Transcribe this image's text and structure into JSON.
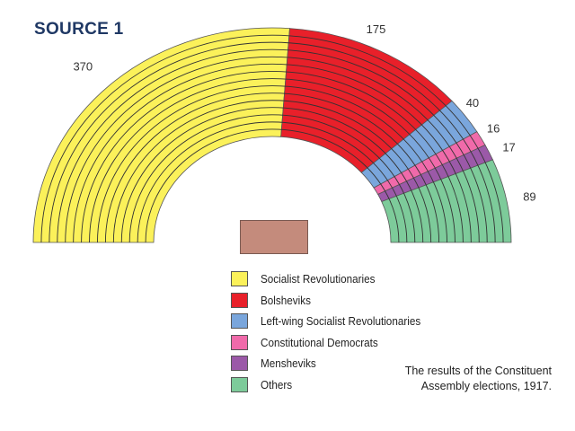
{
  "title": "SOURCE  1",
  "caption": {
    "line1": "The results of the Constituent",
    "line2": "Assembly elections, 1917."
  },
  "chart_data": {
    "type": "pie",
    "subtype": "parliament-semicircle",
    "title": "SOURCE 1",
    "caption": "The results of the Constituent Assembly elections, 1917.",
    "categories": [
      "Socialist Revolutionaries",
      "Bolsheviks",
      "Left-wing Socialist Revolutionaries",
      "Constitutional Democrats",
      "Mensheviks",
      "Others"
    ],
    "values": [
      370,
      175,
      40,
      16,
      17,
      89
    ],
    "colors": [
      "#fbf15a",
      "#e8202a",
      "#7aa6dc",
      "#f06aaa",
      "#9b59a8",
      "#7dcb9a"
    ],
    "data_labels": [
      "370",
      "175",
      "40",
      "16",
      "17",
      "89"
    ],
    "legend_position": "bottom-center",
    "rows": 15
  },
  "legend": {
    "items": [
      {
        "label": "Socialist Revolutionaries",
        "color": "#fbf15a"
      },
      {
        "label": "Bolsheviks",
        "color": "#e8202a"
      },
      {
        "label": "Left-wing Socialist Revolutionaries",
        "color": "#7aa6dc"
      },
      {
        "label": "Constitutional Democrats",
        "color": "#f06aaa"
      },
      {
        "label": "Mensheviks",
        "color": "#9b59a8"
      },
      {
        "label": "Others",
        "color": "#7dcb9a"
      }
    ]
  },
  "podium": {
    "color": "#c48b7c"
  }
}
